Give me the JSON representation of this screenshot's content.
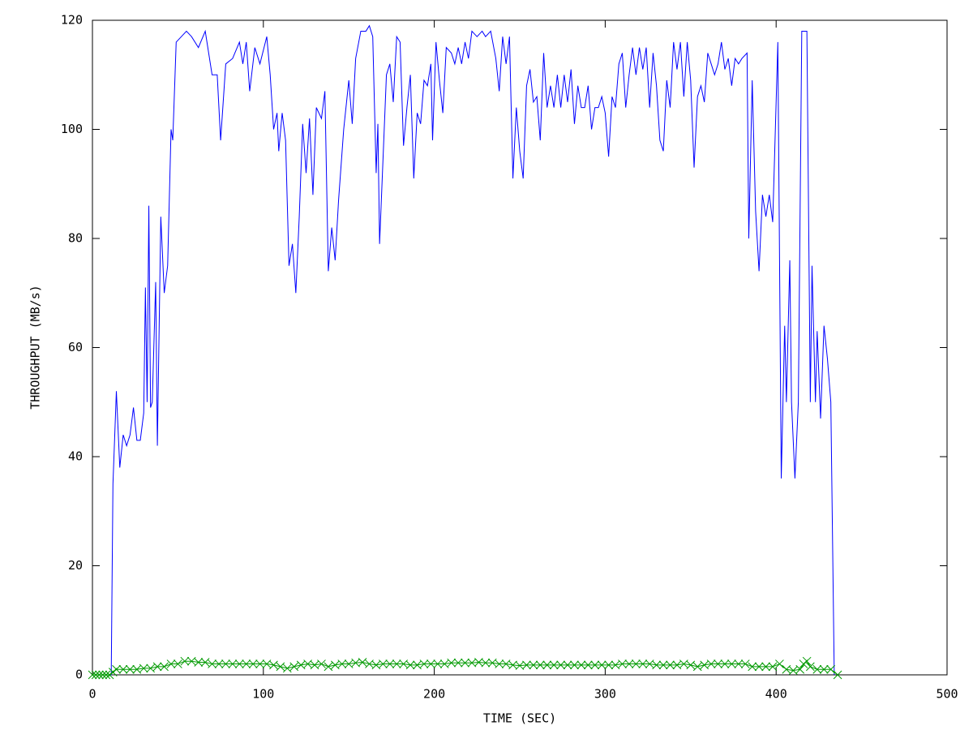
{
  "chart_data": {
    "type": "line",
    "x_label": "TIME (SEC)",
    "y_label": "THROUGHPUT (MB/s)",
    "xlim": [
      0,
      500
    ],
    "xticks": [
      0,
      100,
      200,
      300,
      400,
      500
    ],
    "ylim": [
      0,
      120
    ],
    "yticks": [
      0,
      20,
      40,
      60,
      80,
      100,
      120
    ],
    "grid": false,
    "series": [
      {
        "color": "#0000ff",
        "marker": "none",
        "x": [
          0,
          11,
          12,
          14,
          16,
          18,
          20,
          22,
          24,
          26,
          28,
          30,
          31,
          32,
          33,
          34,
          35,
          37,
          38,
          40,
          42,
          44,
          46,
          47,
          49,
          52,
          55,
          58,
          62,
          66,
          70,
          73,
          75,
          78,
          82,
          86,
          88,
          90,
          92,
          95,
          98,
          102,
          104,
          106,
          108,
          109,
          111,
          113,
          115,
          117,
          119,
          121,
          123,
          125,
          127,
          129,
          131,
          134,
          136,
          138,
          140,
          142,
          144,
          147,
          150,
          152,
          154,
          157,
          160,
          162,
          164,
          166,
          167,
          168,
          172,
          174,
          176,
          178,
          180,
          182,
          184,
          186,
          188,
          190,
          192,
          194,
          196,
          198,
          199,
          201,
          203,
          205,
          207,
          210,
          212,
          214,
          216,
          218,
          220,
          222,
          225,
          228,
          230,
          233,
          236,
          238,
          240,
          242,
          244,
          246,
          248,
          250,
          252,
          254,
          256,
          258,
          260,
          262,
          264,
          266,
          268,
          270,
          272,
          274,
          276,
          278,
          280,
          282,
          284,
          286,
          288,
          290,
          292,
          294,
          296,
          298,
          300,
          302,
          304,
          306,
          308,
          310,
          312,
          314,
          316,
          318,
          320,
          322,
          324,
          326,
          328,
          330,
          332,
          334,
          336,
          338,
          340,
          342,
          344,
          346,
          348,
          350,
          352,
          354,
          356,
          358,
          360,
          362,
          364,
          366,
          368,
          370,
          372,
          374,
          376,
          378,
          380,
          383,
          384,
          386,
          388,
          390,
          392,
          394,
          396,
          398,
          401,
          403,
          405,
          406,
          408,
          409,
          411,
          413,
          415,
          418,
          420,
          421,
          423,
          424,
          426,
          428,
          430,
          432,
          434
        ],
        "values": [
          0,
          0,
          35,
          52,
          38,
          44,
          42,
          44,
          49,
          43,
          43,
          48,
          71,
          50,
          86,
          49,
          50,
          72,
          42,
          84,
          70,
          75,
          100,
          98,
          116,
          117,
          118,
          117,
          115,
          118,
          110,
          110,
          98,
          112,
          113,
          116,
          112,
          116,
          107,
          115,
          112,
          117,
          110,
          100,
          103,
          96,
          103,
          98,
          75,
          79,
          70,
          84,
          101,
          92,
          102,
          88,
          104,
          102,
          107,
          74,
          82,
          76,
          87,
          100,
          109,
          101,
          113,
          118,
          118,
          119,
          117,
          92,
          101,
          79,
          110,
          112,
          105,
          117,
          116,
          97,
          104,
          110,
          91,
          103,
          101,
          109,
          108,
          112,
          98,
          116,
          109,
          103,
          115,
          114,
          112,
          115,
          112,
          116,
          113,
          118,
          117,
          118,
          117,
          118,
          113,
          107,
          117,
          112,
          117,
          91,
          104,
          96,
          91,
          108,
          111,
          105,
          106,
          98,
          114,
          104,
          108,
          104,
          110,
          104,
          110,
          105,
          111,
          101,
          108,
          104,
          104,
          108,
          100,
          104,
          104,
          106,
          103,
          95,
          106,
          104,
          112,
          114,
          104,
          110,
          115,
          110,
          115,
          111,
          115,
          104,
          114,
          108,
          98,
          96,
          109,
          104,
          116,
          111,
          116,
          106,
          116,
          109,
          93,
          106,
          108,
          105,
          114,
          112,
          110,
          112,
          116,
          111,
          113,
          108,
          113,
          112,
          113,
          114,
          80,
          109,
          85,
          74,
          88,
          84,
          88,
          83,
          116,
          36,
          64,
          50,
          76,
          50,
          36,
          50,
          118,
          118,
          50,
          75,
          50,
          63,
          47,
          64,
          58,
          50,
          0
        ]
      },
      {
        "color": "#009900",
        "marker": "x",
        "x": [
          0,
          2,
          4,
          6,
          8,
          10,
          12,
          14,
          18,
          22,
          26,
          30,
          34,
          38,
          42,
          46,
          50,
          54,
          58,
          62,
          66,
          70,
          74,
          78,
          82,
          86,
          90,
          94,
          98,
          102,
          106,
          110,
          114,
          118,
          122,
          126,
          130,
          134,
          138,
          142,
          146,
          150,
          154,
          158,
          162,
          166,
          170,
          174,
          178,
          182,
          186,
          190,
          194,
          198,
          202,
          206,
          210,
          214,
          218,
          222,
          226,
          230,
          234,
          238,
          242,
          246,
          250,
          254,
          258,
          262,
          266,
          270,
          274,
          278,
          282,
          286,
          290,
          294,
          298,
          302,
          306,
          310,
          314,
          318,
          322,
          326,
          330,
          334,
          338,
          342,
          346,
          350,
          354,
          358,
          362,
          366,
          370,
          374,
          378,
          382,
          386,
          390,
          394,
          398,
          402,
          406,
          410,
          414,
          416,
          418,
          420,
          424,
          428,
          432,
          436
        ],
        "values": [
          0,
          0,
          0,
          0,
          0,
          0,
          0.5,
          1,
          1,
          1,
          1,
          1.2,
          1.2,
          1.5,
          1.5,
          2,
          2,
          2.5,
          2.5,
          2.3,
          2.3,
          2,
          2,
          2,
          2,
          2,
          2,
          2,
          2,
          2,
          1.8,
          1.5,
          1.2,
          1.5,
          1.8,
          2,
          1.8,
          2,
          1.5,
          1.8,
          2,
          2,
          2.2,
          2.3,
          2,
          1.8,
          2,
          2,
          2,
          2,
          1.8,
          1.8,
          2,
          2,
          2,
          2,
          2.2,
          2.2,
          2.2,
          2.2,
          2.3,
          2.2,
          2.2,
          2,
          2,
          1.8,
          1.7,
          1.8,
          1.8,
          1.8,
          1.8,
          1.8,
          1.8,
          1.8,
          1.8,
          1.8,
          1.8,
          1.8,
          1.8,
          1.8,
          1.8,
          2,
          2,
          2,
          2,
          2,
          1.8,
          1.8,
          1.8,
          1.8,
          2,
          1.8,
          1.5,
          1.8,
          2,
          2,
          2,
          2,
          2,
          2,
          1.5,
          1.5,
          1.5,
          1.5,
          2,
          1,
          0.8,
          1,
          2,
          2.5,
          1.5,
          1,
          1,
          1,
          0
        ]
      }
    ]
  }
}
